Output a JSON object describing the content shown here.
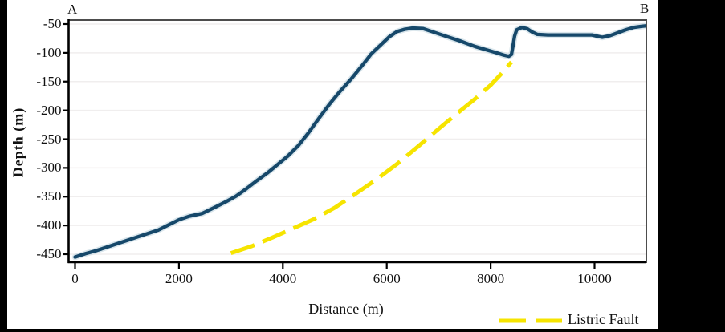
{
  "chart_data": {
    "type": "line",
    "title": "",
    "xlabel": "Distance (m)",
    "ylabel": "Depth (m)",
    "xlim": [
      0,
      11000
    ],
    "ylim": [
      -464,
      -43
    ],
    "x_ticks": [
      0,
      2000,
      4000,
      6000,
      8000,
      10000
    ],
    "y_ticks": [
      -50,
      -100,
      -150,
      -200,
      -250,
      -300,
      -350,
      -400,
      -450
    ],
    "grid": "faint horizontal gridlines at each y tick",
    "legend_position": "bottom-right below plot",
    "annotations": [
      {
        "text": "A",
        "position": "top-left above plot"
      },
      {
        "text": "B",
        "position": "top-right above plot"
      }
    ],
    "series": [
      {
        "name": "depth_profile",
        "label": "",
        "style": "solid",
        "color": "#16486a",
        "points": [
          [
            0,
            -455
          ],
          [
            200,
            -449
          ],
          [
            400,
            -444
          ],
          [
            600,
            -438
          ],
          [
            800,
            -432
          ],
          [
            1000,
            -426
          ],
          [
            1200,
            -420
          ],
          [
            1400,
            -414
          ],
          [
            1600,
            -408
          ],
          [
            1800,
            -399
          ],
          [
            2000,
            -390
          ],
          [
            2200,
            -384
          ],
          [
            2450,
            -379
          ],
          [
            2700,
            -368
          ],
          [
            2900,
            -359
          ],
          [
            3100,
            -349
          ],
          [
            3300,
            -336
          ],
          [
            3500,
            -322
          ],
          [
            3700,
            -309
          ],
          [
            3900,
            -294
          ],
          [
            4100,
            -279
          ],
          [
            4300,
            -261
          ],
          [
            4500,
            -238
          ],
          [
            4700,
            -213
          ],
          [
            4900,
            -189
          ],
          [
            5100,
            -167
          ],
          [
            5300,
            -147
          ],
          [
            5500,
            -125
          ],
          [
            5700,
            -102
          ],
          [
            5900,
            -85
          ],
          [
            6050,
            -72
          ],
          [
            6200,
            -63
          ],
          [
            6350,
            -59
          ],
          [
            6500,
            -57
          ],
          [
            6700,
            -58
          ],
          [
            6900,
            -64
          ],
          [
            7100,
            -70
          ],
          [
            7400,
            -79
          ],
          [
            7700,
            -89
          ],
          [
            8000,
            -97
          ],
          [
            8150,
            -101
          ],
          [
            8250,
            -104
          ],
          [
            8350,
            -106
          ],
          [
            8400,
            -103
          ],
          [
            8430,
            -88
          ],
          [
            8460,
            -71
          ],
          [
            8500,
            -60
          ],
          [
            8600,
            -56
          ],
          [
            8700,
            -58
          ],
          [
            8800,
            -64
          ],
          [
            8900,
            -68
          ],
          [
            9100,
            -69
          ],
          [
            9400,
            -69
          ],
          [
            9700,
            -69
          ],
          [
            9950,
            -69
          ],
          [
            10050,
            -71
          ],
          [
            10150,
            -73
          ],
          [
            10300,
            -70
          ],
          [
            10450,
            -65
          ],
          [
            10600,
            -60
          ],
          [
            10750,
            -56
          ],
          [
            10900,
            -54
          ],
          [
            11000,
            -53
          ]
        ]
      },
      {
        "name": "listric_fault",
        "label": "Listric Fault",
        "style": "dashed",
        "color": "#f6e400",
        "points": [
          [
            3000,
            -448
          ],
          [
            3400,
            -436
          ],
          [
            3800,
            -421
          ],
          [
            4200,
            -405
          ],
          [
            4600,
            -389
          ],
          [
            5000,
            -369
          ],
          [
            5400,
            -345
          ],
          [
            5800,
            -320
          ],
          [
            6200,
            -293
          ],
          [
            6600,
            -263
          ],
          [
            7000,
            -232
          ],
          [
            7400,
            -202
          ],
          [
            7700,
            -180
          ],
          [
            8000,
            -156
          ],
          [
            8200,
            -137
          ],
          [
            8400,
            -116
          ]
        ]
      }
    ]
  },
  "legend": {
    "items": [
      {
        "label": "Listric Fault",
        "color": "#f6e400",
        "style": "dashed"
      }
    ]
  },
  "colors": {
    "page": "#000000",
    "background": "#ffffff",
    "profile_line": "#16486a",
    "profile_halo": "#c2d6e0",
    "fault_line": "#f6e400",
    "frame": "#4d4d4d",
    "axis": "#000000",
    "grid": "#f0eeee",
    "text": "#111111"
  }
}
